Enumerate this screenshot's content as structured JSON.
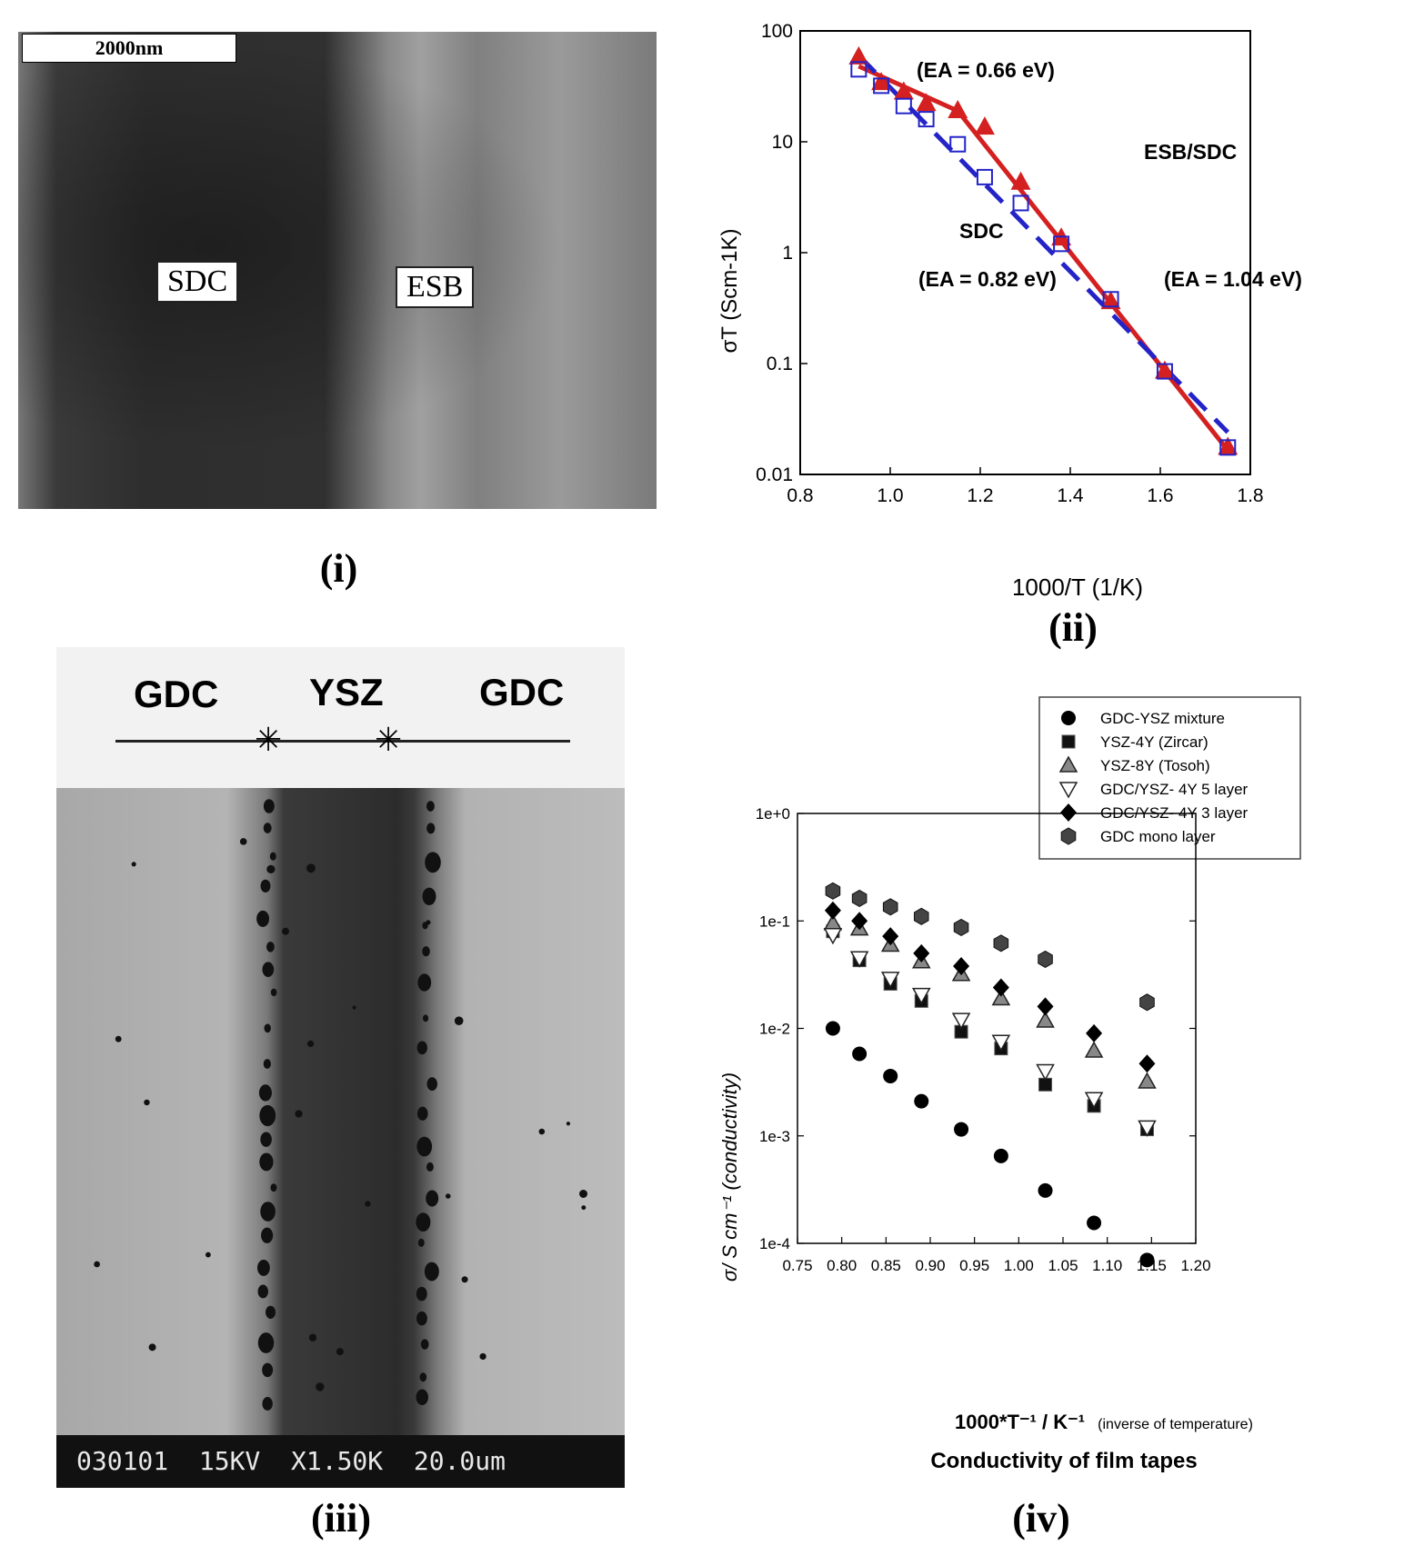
{
  "panels": {
    "p1": {
      "label": "(i)",
      "scale_bar": "2000nm",
      "regions": [
        "SDC",
        "ESB"
      ]
    },
    "p2": {
      "label": "(ii)"
    },
    "p3": {
      "label": "(iii)",
      "regions": [
        "GDC",
        "YSZ",
        "GDC"
      ],
      "info_bar": "030101  15KV  X1.50K  20.0um"
    },
    "p4": {
      "label": "(iv)"
    }
  },
  "chart_data": [
    {
      "type": "line",
      "panel": "ii",
      "xlabel": "1000/T (1/K)",
      "ylabel": "σT (Scm-1K)",
      "xlim": [
        0.8,
        1.8
      ],
      "ylim": [
        0.01,
        100
      ],
      "yscale": "log",
      "xticks": [
        "0.8",
        "1.0",
        "1.2",
        "1.4",
        "1.6",
        "1.8"
      ],
      "yticks": [
        "0.01",
        "0.1",
        "1",
        "10",
        "100"
      ],
      "annotations": {
        "ea_top": "(EA = 0.66 eV)",
        "esb_sdc": "ESB/SDC",
        "sdc": "SDC",
        "ea_sdc": "(EA = 0.82 eV)",
        "ea_right": "(EA = 1.04 eV)"
      },
      "series": [
        {
          "marker": "triangle",
          "color": "#d42020",
          "x": [
            0.93,
            0.98,
            1.03,
            1.08,
            1.15,
            1.21,
            1.29,
            1.38,
            1.49,
            1.61,
            1.75
          ],
          "y": [
            58,
            34,
            28,
            22,
            19,
            13.5,
            4.3,
            1.35,
            0.36,
            0.085,
            0.0175
          ]
        },
        {
          "marker": "square-open",
          "color": "#2323c8",
          "x": [
            0.93,
            0.98,
            1.03,
            1.08,
            1.15,
            1.21,
            1.29,
            1.38,
            1.49,
            1.61,
            1.75
          ],
          "y": [
            45,
            32,
            21,
            16,
            9.5,
            4.8,
            2.8,
            1.2,
            0.38,
            0.085,
            0.0175
          ]
        }
      ],
      "fits": [
        {
          "style": "solid",
          "color": "#d42020",
          "x": [
            0.93,
            1.15,
            1.75
          ],
          "y": [
            48,
            19,
            0.0165
          ]
        },
        {
          "style": "dashed",
          "color": "#2323c8",
          "x": [
            0.93,
            1.75
          ],
          "y": [
            60,
            0.024
          ]
        }
      ]
    },
    {
      "type": "scatter",
      "panel": "iv",
      "title": "Conductivity of film tapes",
      "xlabel": "1000*T⁻¹ / K⁻¹",
      "xlabel_note": "(inverse of temperature)",
      "ylabel": "σ/ S cm⁻¹ (conductivity)",
      "xlim": [
        0.75,
        1.2
      ],
      "ylim": [
        0.0001,
        1
      ],
      "yscale": "log",
      "xticks": [
        "0.75",
        "0.80",
        "0.85",
        "0.90",
        "0.95",
        "1.00",
        "1.05",
        "1.10",
        "1.15",
        "1.20"
      ],
      "yticks": [
        "1e-4",
        "1e-3",
        "1e-2",
        "1e-1",
        "1e+0"
      ],
      "legend_position": "top-right",
      "x": [
        0.79,
        0.82,
        0.855,
        0.89,
        0.935,
        0.98,
        1.03,
        1.085,
        1.145
      ],
      "series": [
        {
          "name": "GDC-YSZ mixture",
          "marker": "circle",
          "y": [
            0.01,
            0.0058,
            0.0036,
            0.0021,
            0.00115,
            0.00065,
            0.00031,
            0.000155,
            7e-05
          ]
        },
        {
          "name": "YSZ-4Y (Zircar)",
          "marker": "square",
          "y": [
            0.08,
            0.043,
            0.026,
            0.018,
            0.0093,
            0.0065,
            0.003,
            0.0019,
            0.00115
          ]
        },
        {
          "name": "YSZ-8Y (Tosoh)",
          "marker": "triangle",
          "y": [
            0.095,
            0.085,
            0.06,
            0.042,
            0.032,
            0.019,
            0.0118,
            0.0062,
            0.0032
          ]
        },
        {
          "name": "GDC/YSZ- 4Y  5 layer",
          "marker": "triangle-down-open",
          "y": [
            0.074,
            0.045,
            0.029,
            0.0205,
            0.012,
            0.0075,
            0.004,
            0.0022,
            0.0012
          ]
        },
        {
          "name": "GDC/YSZ- 4Y 3 layer",
          "marker": "diamond",
          "y": [
            0.125,
            0.1,
            0.072,
            0.05,
            0.038,
            0.024,
            0.016,
            0.009,
            0.0047
          ]
        },
        {
          "name": "GDC mono layer",
          "marker": "hexagon",
          "y": [
            0.19,
            0.162,
            0.135,
            0.11,
            0.087,
            0.062,
            0.044,
            null,
            0.0175
          ]
        }
      ]
    }
  ]
}
